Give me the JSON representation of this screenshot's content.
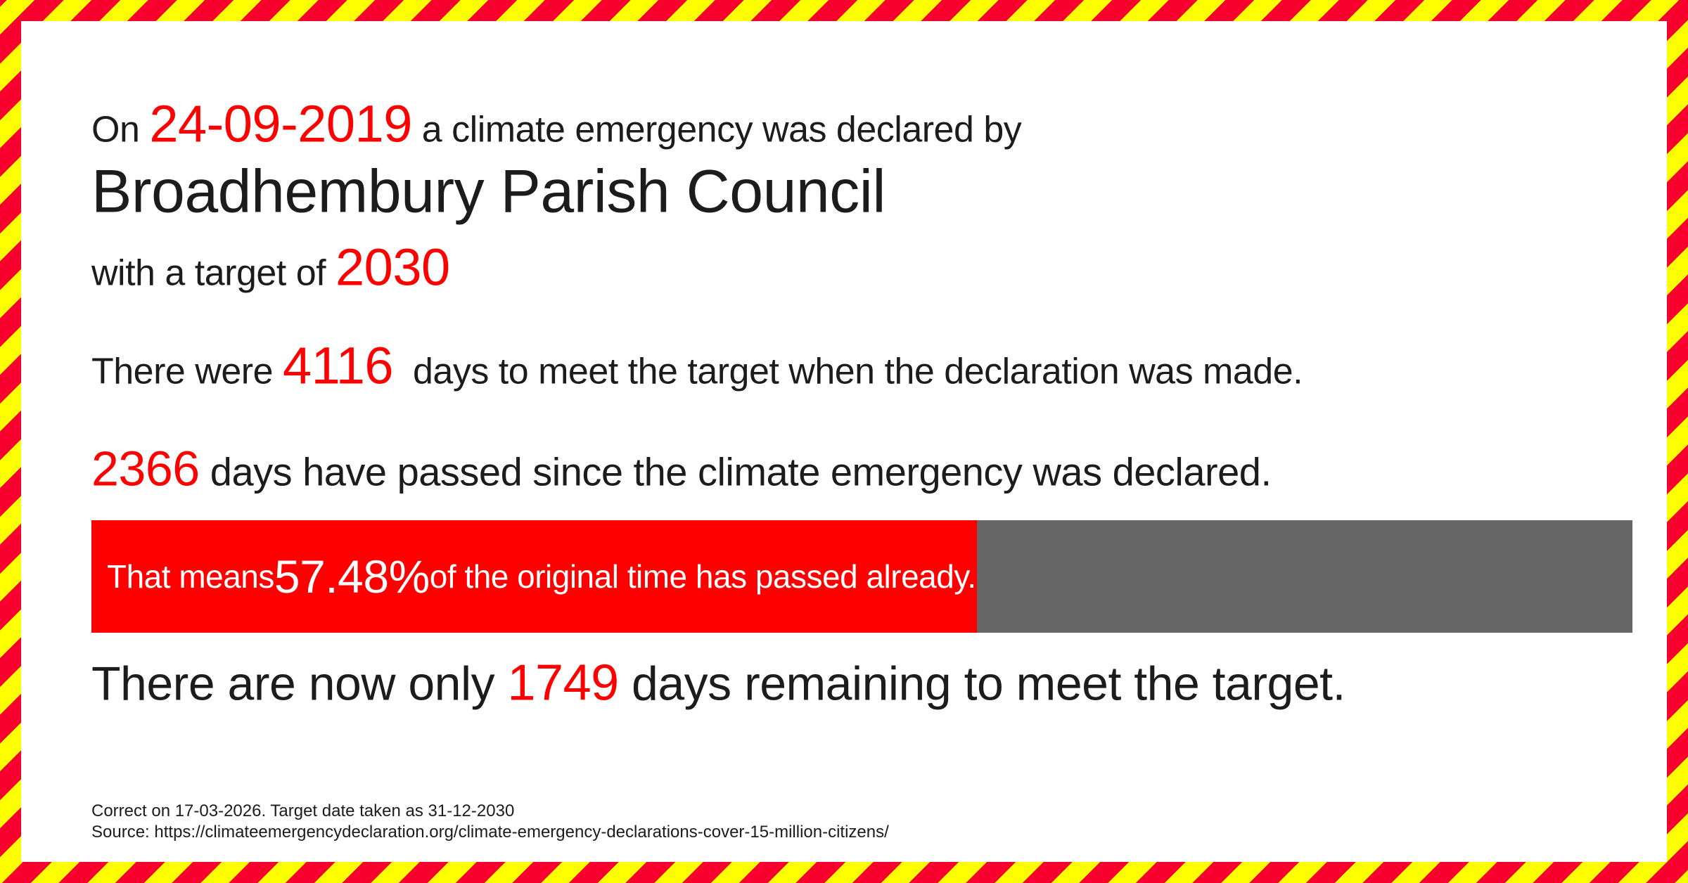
{
  "colors": {
    "stripe_red": "#f7002e",
    "stripe_yellow": "#ffff00",
    "accent_red": "#fe0000",
    "bar_red": "#fe0000",
    "bar_gray": "#666666",
    "text_black": "#1c1c1c",
    "panel_white": "#ffffff"
  },
  "declaration_line": {
    "prefix": "On ",
    "date": "24-09-2019",
    "suffix": " a climate emergency was declared by"
  },
  "council_name": "Broadhembury Parish Council",
  "target_line": {
    "prefix": "with a target of ",
    "year": "2030"
  },
  "days_to_target_line": {
    "prefix": "There were ",
    "days": "4116",
    "suffix": "  days to meet the target when the declaration was made."
  },
  "days_passed_line": {
    "days": "2366",
    "suffix": " days have passed since the climate emergency was declared."
  },
  "progress_bar": {
    "prefix": "That means ",
    "percent_label": "57.48%",
    "suffix": " of the original time has passed already.",
    "percent_value": 57.48
  },
  "days_remaining_line": {
    "prefix": "There are now only ",
    "days": "1749",
    "suffix": " days remaining to meet the target."
  },
  "footer": {
    "correct_on": "Correct on 17-03-2026. Target date taken as 31-12-2030",
    "source": "Source: https://climateemergencydeclaration.org/climate-emergency-declarations-cover-15-million-citizens/"
  }
}
